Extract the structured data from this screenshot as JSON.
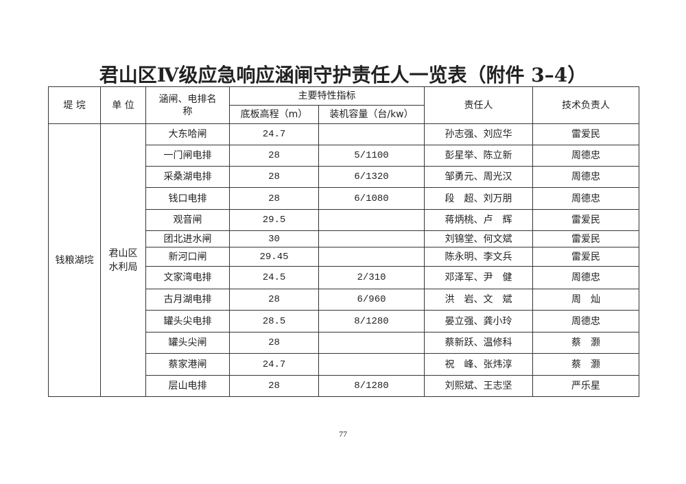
{
  "title": "君山区Ⅳ级应急响应涵闸守护责任人一览表（附件 3–4）",
  "headers": {
    "dike": "堤 垸",
    "unit": "单 位",
    "name": "涵闸、电排名称",
    "indicators": "主要特性指标",
    "elevation": "底板高程（m）",
    "capacity": "装机容量（台/kw）",
    "responsible": "责任人",
    "tech": "技术负责人"
  },
  "dike": "钱粮湖垸",
  "unit": "君山区水利局",
  "rows": [
    {
      "name": "大东哈闸",
      "elevation": "24.7",
      "capacity": "",
      "responsible": "孙志强、刘应华",
      "tech": "雷爱民"
    },
    {
      "name": "一门闸电排",
      "elevation": "28",
      "capacity": "5/1100",
      "responsible": "彭星举、陈立新",
      "tech": "周德忠"
    },
    {
      "name": "采桑湖电排",
      "elevation": "28",
      "capacity": "6/1320",
      "responsible": "邹勇元、周光汉",
      "tech": "周德忠"
    },
    {
      "name": "钱口电排",
      "elevation": "28",
      "capacity": "6/1080",
      "responsible": "段　超、刘万朋",
      "tech": "周德忠"
    },
    {
      "name": "观音闸",
      "elevation": "29.5",
      "capacity": "",
      "responsible": "蒋炳桃、卢　辉",
      "tech": "雷爱民"
    },
    {
      "name": "团北进水闸",
      "elevation": "30",
      "capacity": "",
      "responsible": "刘锦堂、何文斌",
      "tech": "雷爱民"
    },
    {
      "name": "新河口闸",
      "elevation": "29.45",
      "capacity": "",
      "responsible": "陈永明、李文兵",
      "tech": "雷爱民"
    },
    {
      "name": "文家湾电排",
      "elevation": "24.5",
      "capacity": "2/310",
      "responsible": "邓泽军、尹　健",
      "tech": "周德忠"
    },
    {
      "name": "古月湖电排",
      "elevation": "28",
      "capacity": "6/960",
      "responsible": "洪　岩、文　斌",
      "tech": "周　灿"
    },
    {
      "name": "罐头尖电排",
      "elevation": "28.5",
      "capacity": "8/1280",
      "responsible": "晏立强、龚小玲",
      "tech": "周德忠"
    },
    {
      "name": "罐头尖闸",
      "elevation": "28",
      "capacity": "",
      "responsible": "蔡新跃、温修科",
      "tech": "蔡　灏"
    },
    {
      "name": "蔡家港闸",
      "elevation": "24.7",
      "capacity": "",
      "responsible": "祝　峰、张炜淳",
      "tech": "蔡　灏"
    },
    {
      "name": "层山电排",
      "elevation": "28",
      "capacity": "8/1280",
      "responsible": "刘熙斌、王志坚",
      "tech": "严乐星"
    }
  ],
  "page_number": "77"
}
